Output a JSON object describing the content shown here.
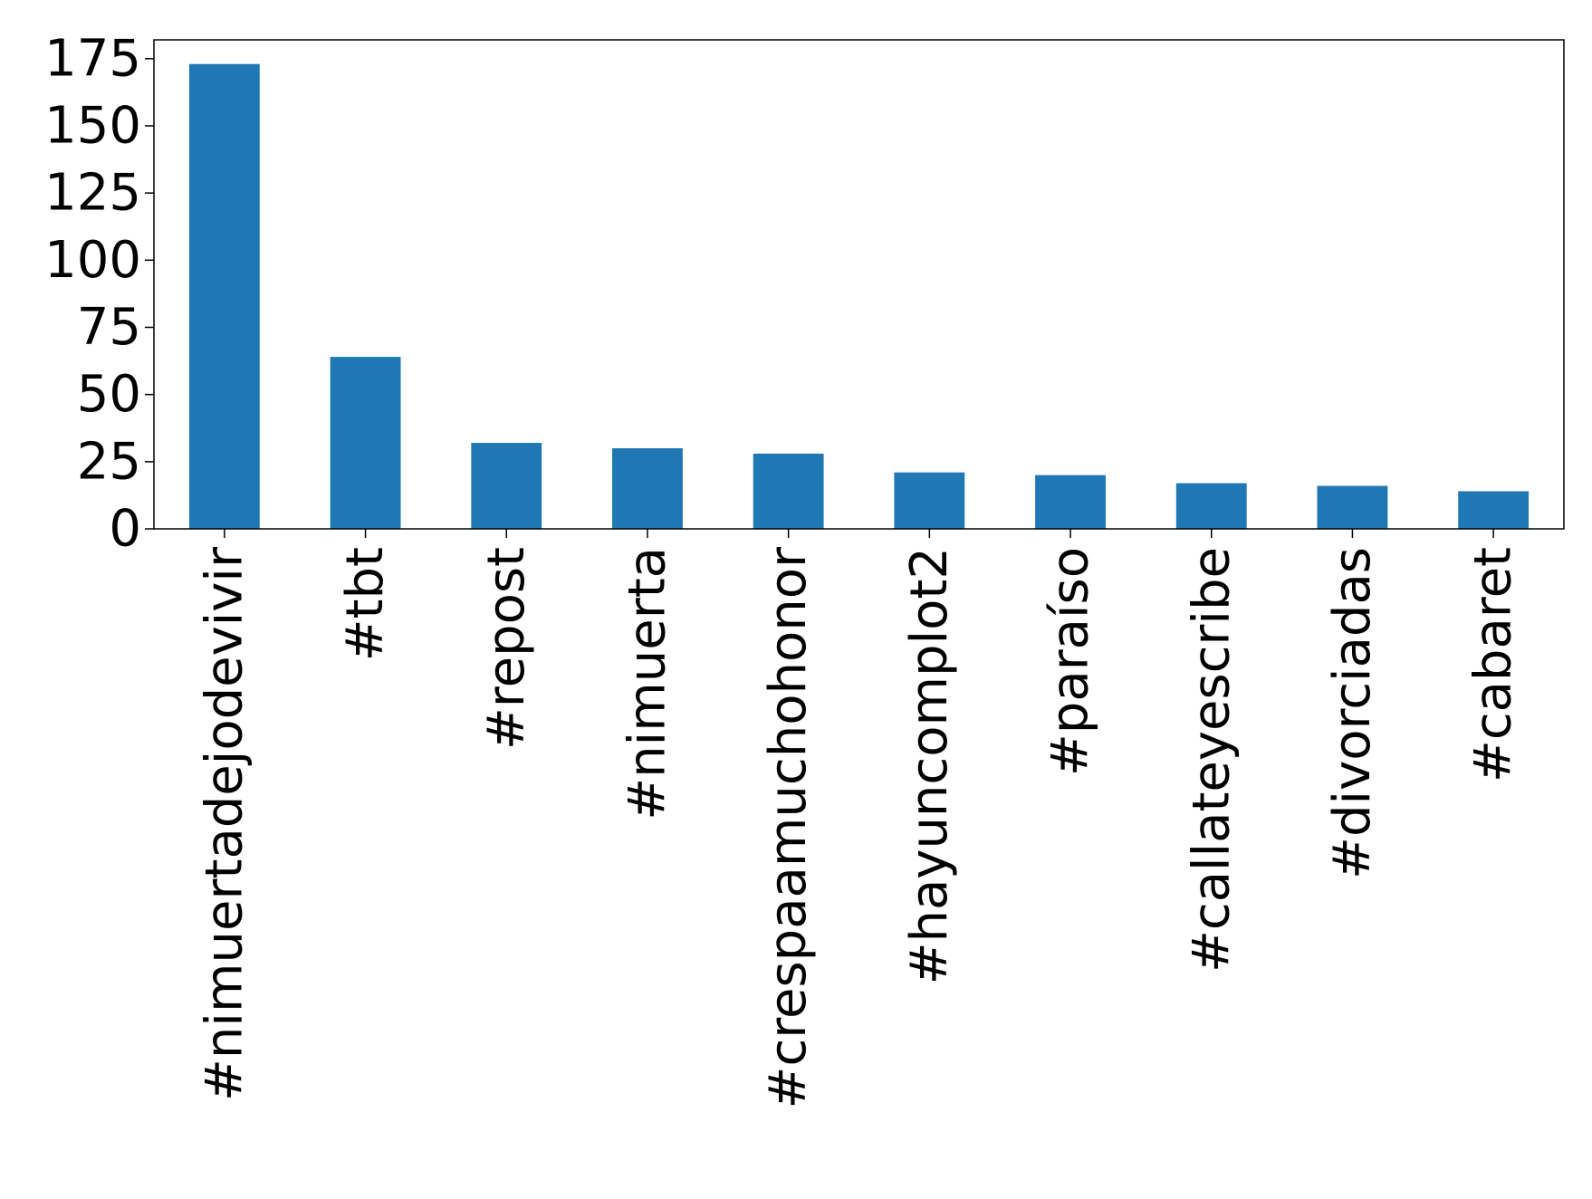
{
  "chart_data": {
    "type": "bar",
    "title": "",
    "xlabel": "",
    "ylabel": "",
    "categories": [
      "#nimuertadejodevivir",
      "#tbt",
      "#repost",
      "#nimuerta",
      "#crespaamuchohonor",
      "#hayuncomplot2",
      "#paraíso",
      "#callateyescribe",
      "#divorciadas",
      "#cabaret"
    ],
    "values": [
      173,
      64,
      32,
      30,
      28,
      21,
      20,
      17,
      16,
      14
    ],
    "ylim": [
      0,
      182
    ],
    "yticks": [
      0,
      25,
      50,
      75,
      100,
      125,
      150,
      175
    ],
    "ytick_labels": [
      "0",
      "25",
      "50",
      "75",
      "100",
      "125",
      "150",
      "175"
    ],
    "grid": false,
    "legend": "none",
    "colors": {
      "bar": "#1f77b4",
      "axis": "#000000"
    }
  }
}
